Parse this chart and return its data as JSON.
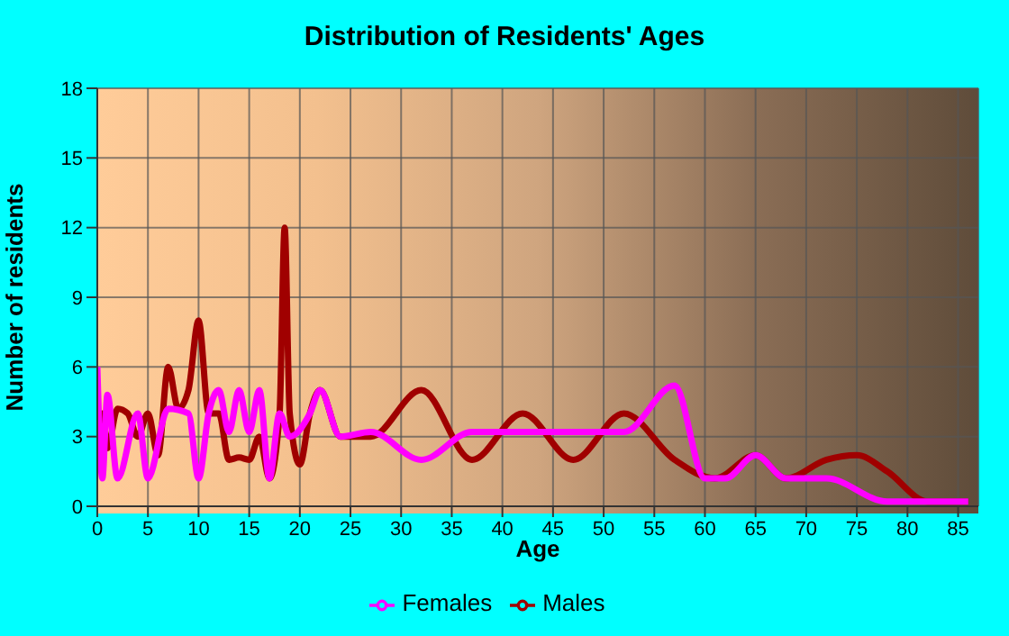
{
  "chart_data": {
    "type": "line",
    "title": "Distribution of Residents' Ages",
    "xlabel": "Age",
    "ylabel": "Number of residents",
    "xlim": [
      0,
      87
    ],
    "xticks": [
      0,
      5,
      10,
      15,
      20,
      25,
      30,
      35,
      40,
      45,
      50,
      55,
      60,
      65,
      70,
      75,
      80,
      85
    ],
    "ylim": [
      0,
      18
    ],
    "yticks": [
      0,
      3,
      6,
      9,
      12,
      15,
      18
    ],
    "grid": true,
    "legend": "bottom",
    "marker": "none",
    "line_style": "solid",
    "series": [
      {
        "name": "Males",
        "color": "#a00000",
        "x": [
          0,
          0.5,
          1,
          2,
          3,
          4,
          5,
          6,
          7,
          8,
          9,
          10,
          11,
          12,
          13,
          14,
          15,
          16,
          17,
          18,
          18.5,
          19,
          20,
          21,
          22,
          24,
          27,
          32,
          37,
          42,
          47,
          52,
          57,
          61,
          65,
          68,
          72,
          75,
          78,
          82,
          86
        ],
        "values": [
          2,
          4,
          2.5,
          4.2,
          4,
          3,
          4,
          2.2,
          6,
          4.2,
          5,
          8,
          4,
          4,
          2,
          2.1,
          2,
          3,
          1.2,
          4,
          12,
          4,
          1.8,
          4,
          5,
          3,
          3,
          5,
          2,
          4,
          2,
          4,
          2,
          1.2,
          2.2,
          1.2,
          2,
          2.2,
          1.5,
          0.2,
          0.2
        ]
      },
      {
        "name": "Females",
        "color": "#ff00ff",
        "x": [
          0,
          0.5,
          1,
          2,
          4,
          5,
          7,
          9,
          10,
          11,
          12,
          13,
          14,
          15,
          16,
          17,
          18,
          19,
          21,
          22,
          24,
          27,
          32,
          37,
          42,
          47,
          52,
          57,
          60,
          62,
          65,
          68,
          72,
          78,
          86
        ],
        "values": [
          6,
          1.2,
          4.8,
          1.2,
          4,
          1.2,
          4.2,
          4,
          1.2,
          4,
          5,
          3.2,
          5,
          3.2,
          5,
          1.2,
          4,
          3,
          4,
          5,
          3,
          3.2,
          2,
          3.2,
          3.2,
          3.2,
          3.2,
          5.2,
          1.2,
          1.2,
          2.2,
          1.2,
          1.2,
          0.2,
          0.2
        ]
      }
    ]
  }
}
